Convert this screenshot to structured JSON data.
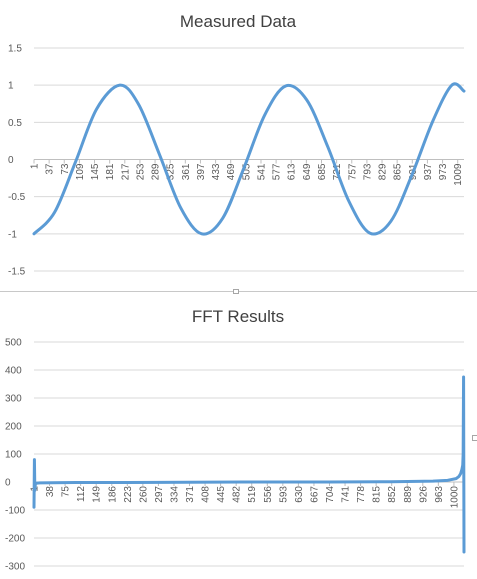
{
  "chart_data": [
    {
      "type": "line",
      "title": "Measured Data",
      "xlabel": "",
      "ylabel": "",
      "ylim": [
        -1.5,
        1.5
      ],
      "yticks": [
        "1.5",
        "1",
        "0.5",
        "0",
        "-0.5",
        "-1",
        "-1.5"
      ],
      "ytick_values": [
        1.5,
        1,
        0.5,
        0,
        -0.5,
        -1,
        -1.5
      ],
      "xlim": [
        1,
        1024
      ],
      "xticks": [
        "1",
        "37",
        "73",
        "109",
        "145",
        "181",
        "217",
        "253",
        "289",
        "325",
        "361",
        "397",
        "433",
        "469",
        "505",
        "541",
        "577",
        "613",
        "649",
        "685",
        "721",
        "757",
        "793",
        "829",
        "865",
        "901",
        "937",
        "973",
        "1009"
      ],
      "xtick_values": [
        1,
        37,
        73,
        109,
        145,
        181,
        217,
        253,
        289,
        325,
        361,
        397,
        433,
        469,
        505,
        541,
        577,
        613,
        649,
        685,
        721,
        757,
        793,
        829,
        865,
        901,
        937,
        973,
        1009
      ],
      "grid": true,
      "color": "#5b9bd5",
      "series": [
        {
          "x": [
            1,
            50,
            100,
            150,
            205,
            250,
            300,
            350,
            400,
            450,
            500,
            550,
            600,
            650,
            700,
            750,
            800,
            850,
            900,
            950,
            995,
            1024
          ],
          "values": [
            -1,
            -0.71,
            -0.03,
            0.68,
            1,
            0.74,
            0.06,
            -0.65,
            -1,
            -0.79,
            -0.12,
            0.6,
            0.99,
            0.8,
            0.17,
            -0.56,
            -0.99,
            -0.83,
            -0.21,
            0.52,
            1,
            0.92
          ]
        }
      ]
    },
    {
      "type": "line",
      "title": "FFT Results",
      "xlabel": "",
      "ylabel": "",
      "ylim": [
        -300,
        500
      ],
      "yticks": [
        "500",
        "400",
        "300",
        "200",
        "100",
        "0",
        "-100",
        "-200",
        "-300"
      ],
      "ytick_values": [
        500,
        400,
        300,
        200,
        100,
        0,
        -100,
        -200,
        -300
      ],
      "xlim": [
        1,
        1024
      ],
      "xticks": [
        "1",
        "38",
        "75",
        "112",
        "149",
        "186",
        "223",
        "260",
        "297",
        "334",
        "371",
        "408",
        "445",
        "482",
        "519",
        "556",
        "593",
        "630",
        "667",
        "704",
        "741",
        "778",
        "815",
        "852",
        "889",
        "926",
        "963",
        "1000"
      ],
      "xtick_values": [
        1,
        38,
        75,
        112,
        149,
        186,
        223,
        260,
        297,
        334,
        371,
        408,
        445,
        482,
        519,
        556,
        593,
        630,
        667,
        704,
        741,
        778,
        815,
        852,
        889,
        926,
        963,
        1000
      ],
      "grid": true,
      "color": "#5b9bd5",
      "series": [
        {
          "x": [
            1,
            2,
            3,
            4,
            5,
            8,
            15,
            100,
            300,
            500,
            700,
            850,
            950,
            985,
            1005,
            1012,
            1016,
            1019,
            1021,
            1022,
            1023,
            1024
          ],
          "values": [
            -90,
            80,
            -30,
            -10,
            -6,
            -4,
            -3,
            -2,
            -1.5,
            0,
            0,
            1,
            3,
            6,
            12,
            20,
            30,
            45,
            60,
            100,
            375,
            -250
          ]
        }
      ]
    }
  ]
}
